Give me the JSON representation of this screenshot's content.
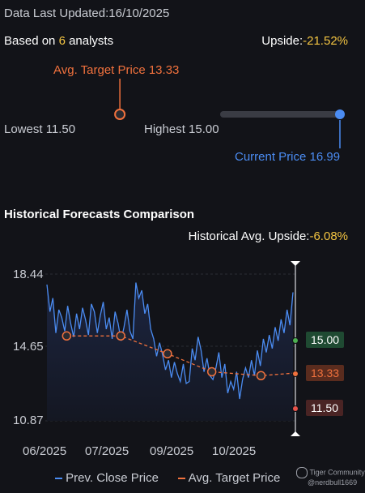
{
  "header": {
    "updated_label": "Data Last Updated:",
    "updated_date": "16/10/2025",
    "analysts_prefix": "Based on ",
    "analysts_count": "6",
    "analysts_suffix": " analysts",
    "upside_label": "Upside:",
    "upside_value": "-21.52%"
  },
  "target_bar": {
    "avg_label": "Avg. Target Price 13.33",
    "lowest_label": "Lowest 11.50",
    "highest_label": "Highest 15.00",
    "current_label": "Current Price 16.99",
    "gradient_colors": [
      "#e8534a",
      "#f08a3a",
      "#c9b93b",
      "#4caf50"
    ],
    "track_color": "#3a3c44",
    "low": 11.5,
    "high": 15.0,
    "avg": 13.33,
    "current": 16.99
  },
  "history": {
    "title": "Historical Forecasts Comparison",
    "avg_upside_label": "Historical Avg. Upside:",
    "avg_upside_value": "-6.08%"
  },
  "chart_data": {
    "type": "line",
    "y_ticks": [
      "18.44",
      "14.65",
      "10.87"
    ],
    "ylim": [
      10.87,
      18.44
    ],
    "x_ticks": [
      "06/2025",
      "07/2025",
      "09/2025",
      "10/2025"
    ],
    "series": [
      {
        "name": "Prev. Close Price",
        "color": "#4b8cf2",
        "values": [
          17.9,
          16.5,
          17.2,
          15.4,
          16.6,
          16.2,
          15.5,
          16.8,
          15.9,
          15.2,
          16.4,
          15.6,
          16.7,
          16.1,
          15.3,
          16.9,
          16.5,
          15.4,
          16.3,
          17.0,
          15.6,
          16.2,
          15.1,
          16.5,
          15.9,
          15.0,
          15.7,
          16.6,
          15.5,
          15.1,
          18.0,
          17.2,
          17.6,
          16.4,
          16.9,
          15.6,
          15.1,
          14.2,
          14.9,
          14.3,
          13.5,
          14.0,
          13.1,
          13.9,
          13.3,
          12.9,
          13.8,
          12.8,
          12.9,
          14.6,
          14.0,
          15.2,
          14.5,
          13.4,
          14.1,
          13.2,
          13.0,
          13.6,
          14.4,
          13.1,
          13.8,
          12.3,
          12.9,
          12.5,
          13.4,
          12.0,
          13.0,
          13.6,
          13.1,
          14.0,
          13.2,
          14.5,
          13.7,
          15.1,
          14.4,
          15.3,
          14.6,
          15.7,
          15.0,
          16.1,
          15.4,
          16.6,
          15.8,
          17.5
        ]
      },
      {
        "name": "Avg. Target Price",
        "color": "#f0713d",
        "values": [
          15.25,
          15.25,
          14.33,
          13.4,
          13.2,
          13.33
        ],
        "x_fraction": [
          0.08,
          0.3,
          0.49,
          0.67,
          0.87,
          1.0
        ],
        "markers": [
          true,
          true,
          true,
          true,
          true,
          false
        ]
      }
    ],
    "right_markers": [
      {
        "label": "15.00",
        "value": 15.0,
        "color": "#4caf50"
      },
      {
        "label": "13.33",
        "value": 13.33,
        "color": "#f0713d"
      },
      {
        "label": "11.50",
        "value": 11.5,
        "color": "#e8534a"
      }
    ],
    "legend": [
      "Prev. Close Price",
      "Avg. Target Price"
    ],
    "legend_position": "bottom"
  },
  "footer": {
    "watermark_line1": "Tiger Community",
    "watermark_line2": "@nerdbull1669"
  }
}
